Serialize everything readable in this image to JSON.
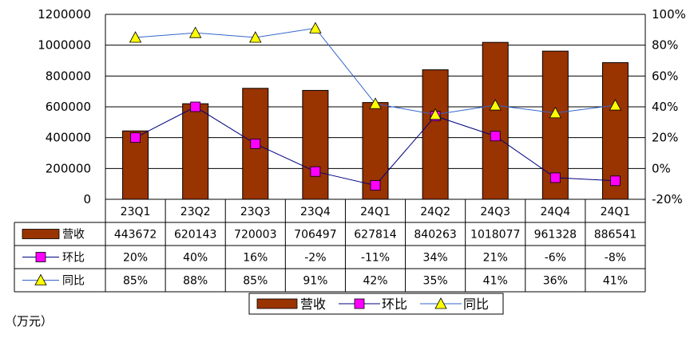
{
  "chart_data": {
    "type": "bar",
    "categories": [
      "23Q1",
      "23Q2",
      "23Q3",
      "23Q4",
      "24Q1",
      "24Q2",
      "24Q3",
      "24Q4",
      "24Q1"
    ],
    "series": [
      {
        "name": "营收",
        "type": "bar",
        "axis": "left",
        "color": "#993300",
        "values": [
          443672,
          620143,
          720003,
          706497,
          627814,
          840263,
          1018077,
          961328,
          886541
        ]
      },
      {
        "name": "环比",
        "type": "line",
        "axis": "right",
        "color": "#000080",
        "marker_color": "#ff00ff",
        "values": [
          20,
          40,
          16,
          -2,
          -11,
          34,
          21,
          -6,
          -8
        ]
      },
      {
        "name": "同比",
        "type": "line",
        "axis": "right",
        "color": "#3366cc",
        "marker_color": "#ffff00",
        "values": [
          85,
          88,
          85,
          91,
          42,
          35,
          41,
          36,
          41
        ]
      }
    ],
    "table_rows": [
      {
        "label": "营收",
        "values": [
          "443672",
          "620143",
          "720003",
          "706497",
          "627814",
          "840263",
          "1018077",
          "961328",
          "886541"
        ]
      },
      {
        "label": "环比",
        "values": [
          "20%",
          "40%",
          "16%",
          "-2%",
          "-11%",
          "34%",
          "21%",
          "-6%",
          "-8%"
        ]
      },
      {
        "label": "同比",
        "values": [
          "85%",
          "88%",
          "85%",
          "91%",
          "42%",
          "35%",
          "41%",
          "36%",
          "41%"
        ]
      }
    ],
    "left_axis": {
      "min": 0,
      "max": 1200000,
      "ticks": [
        "0",
        "200000",
        "400000",
        "600000",
        "800000",
        "1000000",
        "1200000"
      ]
    },
    "right_axis": {
      "min": -20,
      "max": 100,
      "ticks": [
        "-20%",
        "0%",
        "20%",
        "40%",
        "60%",
        "80%",
        "100%"
      ]
    },
    "grid": true,
    "legend_position": "bottom",
    "legend": [
      "营收",
      "环比",
      "同比"
    ],
    "unit_note": "（万元）"
  }
}
